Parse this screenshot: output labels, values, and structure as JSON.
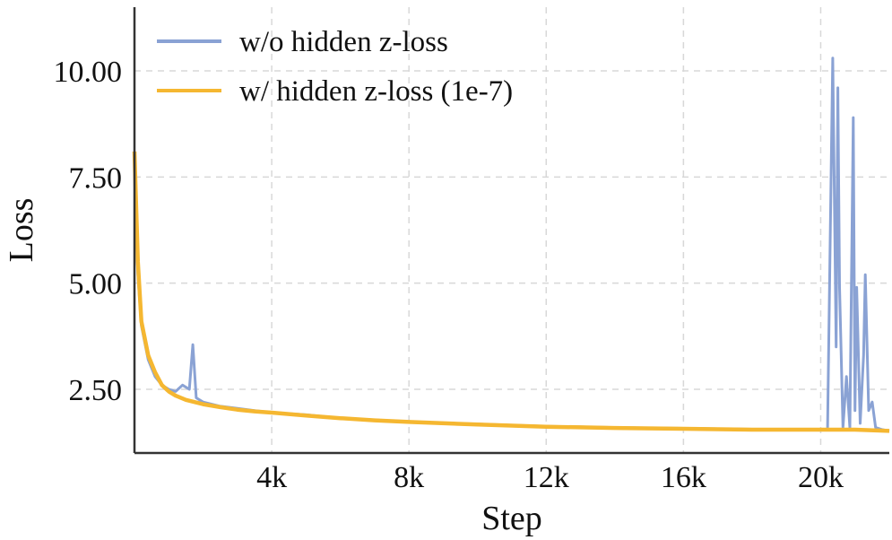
{
  "chart_data": {
    "type": "line",
    "title": "",
    "xlabel": "Step",
    "ylabel": "Loss",
    "xlim": [
      0,
      22000
    ],
    "ylim": [
      1.0,
      11.5
    ],
    "x_ticks": [
      4000,
      8000,
      12000,
      16000,
      20000
    ],
    "x_tick_labels": [
      "4k",
      "8k",
      "12k",
      "16k",
      "20k"
    ],
    "y_ticks": [
      2.5,
      5.0,
      7.5,
      10.0
    ],
    "y_tick_labels": [
      "2.50",
      "5.00",
      "7.50",
      "10.00"
    ],
    "grid": true,
    "legend_position": "top-left",
    "series": [
      {
        "name": "w/o hidden z-loss",
        "color": "#8aa2d4",
        "x": [
          0,
          100,
          200,
          400,
          600,
          800,
          1000,
          1200,
          1400,
          1600,
          1700,
          1800,
          2000,
          2500,
          3000,
          3500,
          4000,
          5000,
          6000,
          7000,
          8000,
          10000,
          12000,
          14000,
          16000,
          18000,
          19500,
          20200,
          20350,
          20450,
          20500,
          20550,
          20650,
          20750,
          20850,
          20950,
          21000,
          21050,
          21150,
          21250,
          21300,
          21400,
          21500,
          21600,
          21800,
          22000
        ],
        "y": [
          7.9,
          5.2,
          4.0,
          3.2,
          2.8,
          2.6,
          2.5,
          2.45,
          2.6,
          2.5,
          3.55,
          2.3,
          2.2,
          2.1,
          2.05,
          2.0,
          1.95,
          1.9,
          1.82,
          1.78,
          1.73,
          1.68,
          1.63,
          1.6,
          1.58,
          1.56,
          1.55,
          1.55,
          10.3,
          3.5,
          9.6,
          4.9,
          1.6,
          2.8,
          1.6,
          8.9,
          2.0,
          4.9,
          1.7,
          3.3,
          5.2,
          2.0,
          2.2,
          1.6,
          1.55,
          1.52
        ]
      },
      {
        "name": "w/ hidden z-loss (1e-7)",
        "color": "#f5b731",
        "x": [
          0,
          100,
          200,
          400,
          600,
          800,
          1000,
          1200,
          1500,
          2000,
          2500,
          3000,
          3500,
          4000,
          5000,
          6000,
          7000,
          8000,
          10000,
          12000,
          14000,
          16000,
          18000,
          20000,
          21000,
          22000
        ],
        "y": [
          8.1,
          5.5,
          4.1,
          3.3,
          2.9,
          2.6,
          2.45,
          2.35,
          2.25,
          2.15,
          2.08,
          2.02,
          1.98,
          1.95,
          1.88,
          1.82,
          1.77,
          1.73,
          1.67,
          1.62,
          1.59,
          1.57,
          1.55,
          1.55,
          1.55,
          1.52
        ]
      }
    ]
  }
}
